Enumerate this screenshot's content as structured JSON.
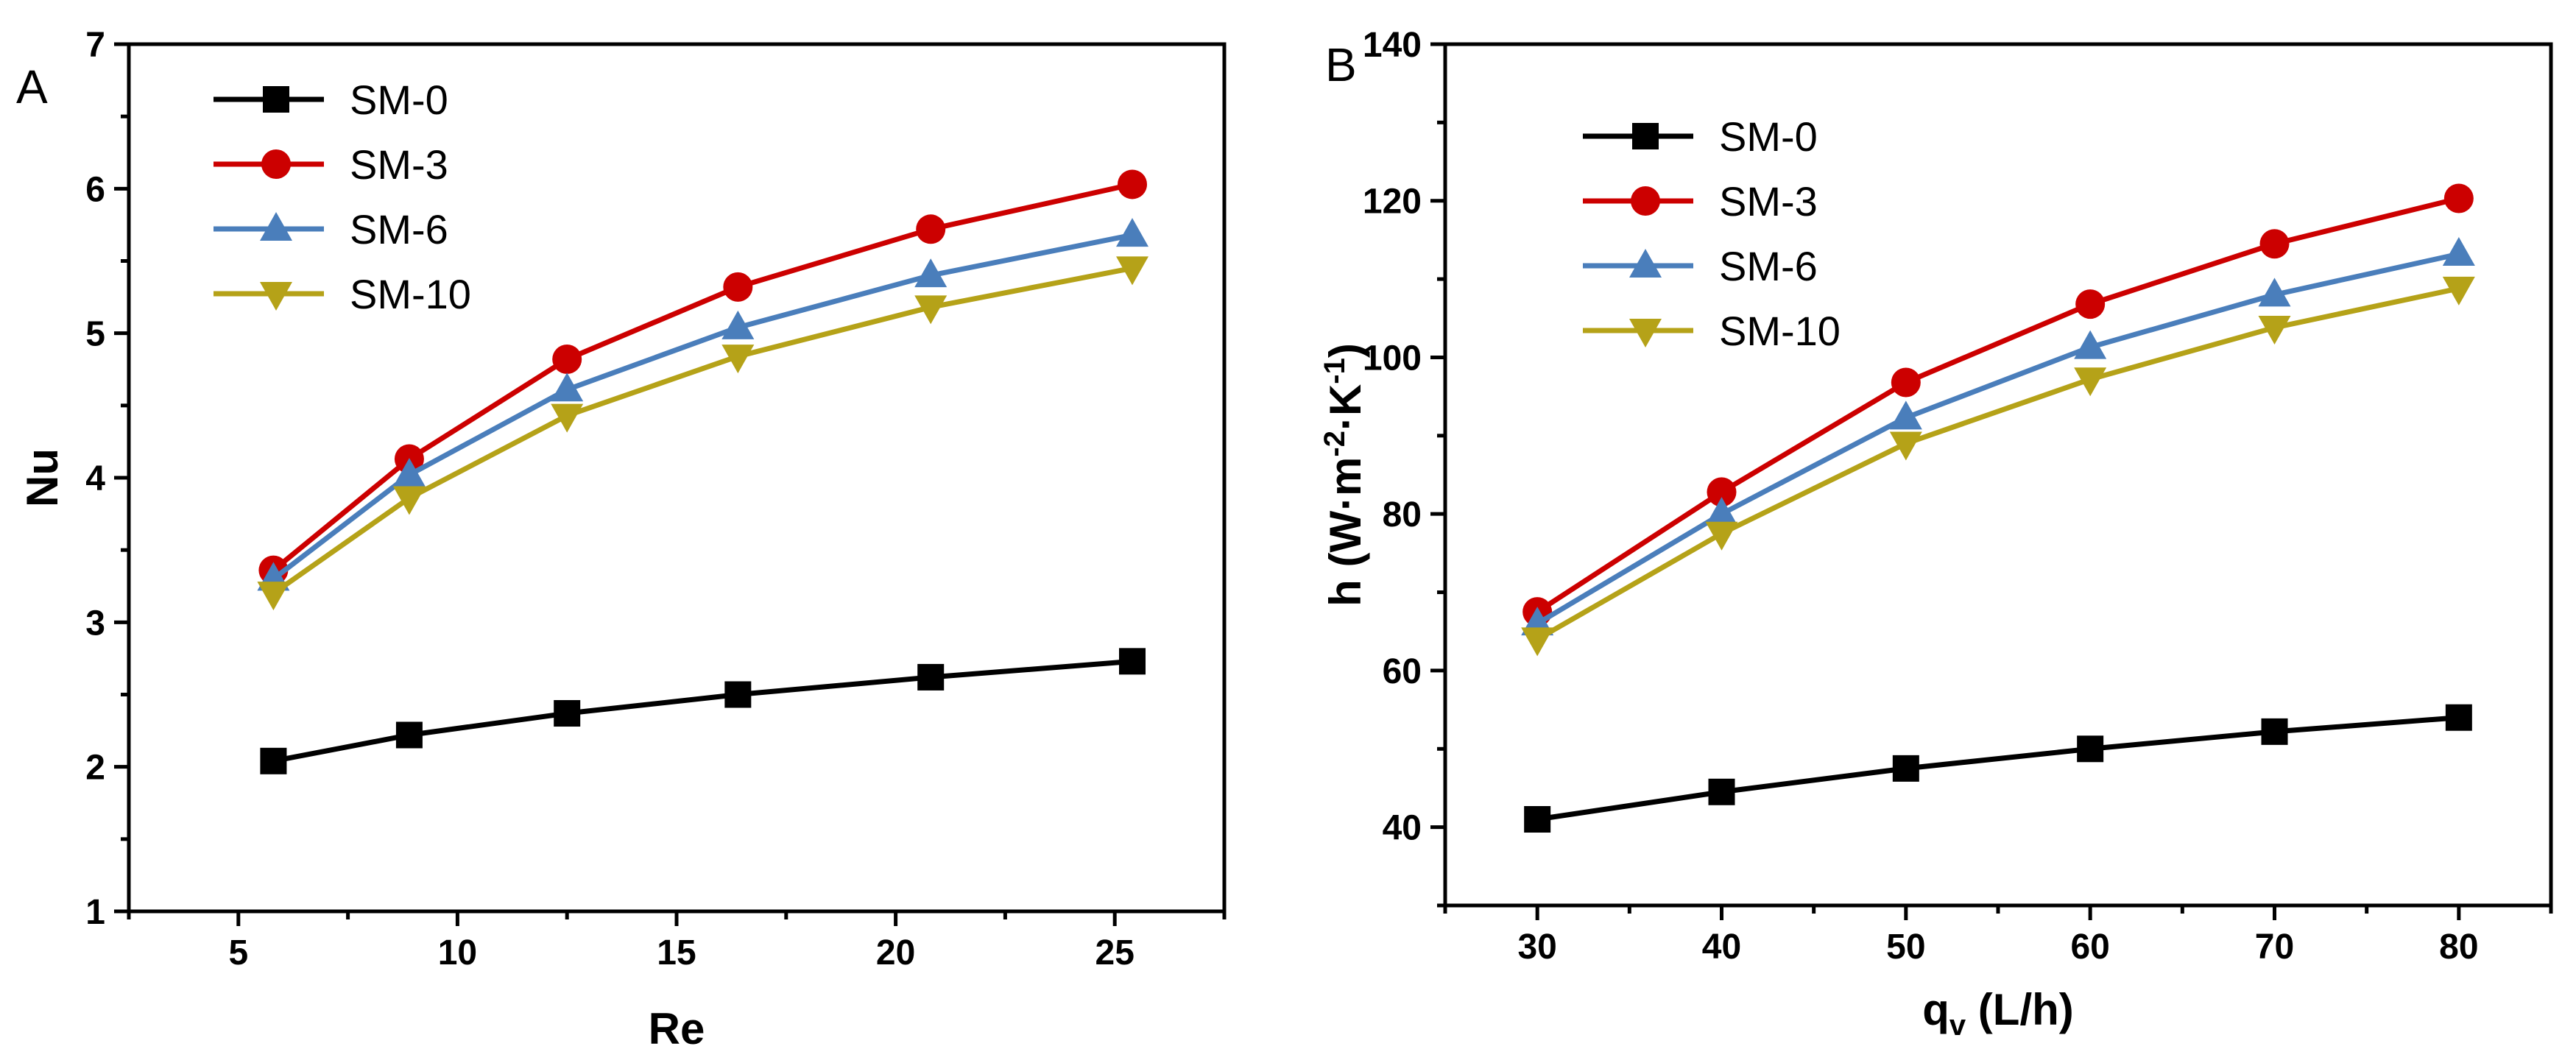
{
  "chart_data": [
    {
      "type": "line",
      "panel_label": "A",
      "xlabel": "Re",
      "ylabel": "Nu",
      "xlim": [
        2.5,
        27.5
      ],
      "ylim": [
        1,
        7
      ],
      "xticks": [
        5,
        10,
        15,
        20,
        25
      ],
      "yticks": [
        1,
        2,
        3,
        4,
        5,
        6,
        7
      ],
      "x": [
        5.8,
        8.9,
        12.5,
        16.4,
        20.8,
        25.4
      ],
      "legend_position": "top-left",
      "series": [
        {
          "name": "SM-0",
          "color": "#000000",
          "marker": "square",
          "values": [
            2.04,
            2.22,
            2.37,
            2.5,
            2.62,
            2.73
          ]
        },
        {
          "name": "SM-3",
          "color": "#cc0000",
          "marker": "circle",
          "values": [
            3.36,
            4.13,
            4.82,
            5.32,
            5.72,
            6.03
          ]
        },
        {
          "name": "SM-6",
          "color": "#4a7ebb",
          "marker": "triangle-up",
          "values": [
            3.3,
            4.02,
            4.61,
            5.04,
            5.4,
            5.68
          ]
        },
        {
          "name": "SM-10",
          "color": "#b5a218",
          "marker": "triangle-down",
          "values": [
            3.2,
            3.86,
            4.43,
            4.84,
            5.18,
            5.45
          ]
        }
      ]
    },
    {
      "type": "line",
      "panel_label": "B",
      "xlabel_main": "q",
      "xlabel_sub": "v",
      "xlabel_rest": " (L/h)",
      "ylabel_parts": [
        "h (W·m",
        "-2",
        "·K",
        "-1",
        ")"
      ],
      "xlim": [
        25,
        85
      ],
      "ylim": [
        30,
        140
      ],
      "xticks": [
        30,
        40,
        50,
        60,
        70,
        80
      ],
      "yticks": [
        40,
        60,
        80,
        100,
        120,
        140
      ],
      "x": [
        30,
        40,
        50,
        60,
        70,
        80
      ],
      "legend_position": "top-left",
      "series": [
        {
          "name": "SM-0",
          "color": "#000000",
          "marker": "square",
          "values": [
            41.0,
            44.5,
            47.5,
            50.0,
            52.2,
            54.0
          ]
        },
        {
          "name": "SM-3",
          "color": "#cc0000",
          "marker": "circle",
          "values": [
            67.5,
            82.8,
            96.8,
            106.8,
            114.5,
            120.3
          ]
        },
        {
          "name": "SM-6",
          "color": "#4a7ebb",
          "marker": "triangle-up",
          "values": [
            66.0,
            80.0,
            92.3,
            101.3,
            108.0,
            113.2
          ]
        },
        {
          "name": "SM-10",
          "color": "#b5a218",
          "marker": "triangle-down",
          "values": [
            64.0,
            77.5,
            89.0,
            97.2,
            103.8,
            108.8
          ]
        }
      ]
    }
  ]
}
